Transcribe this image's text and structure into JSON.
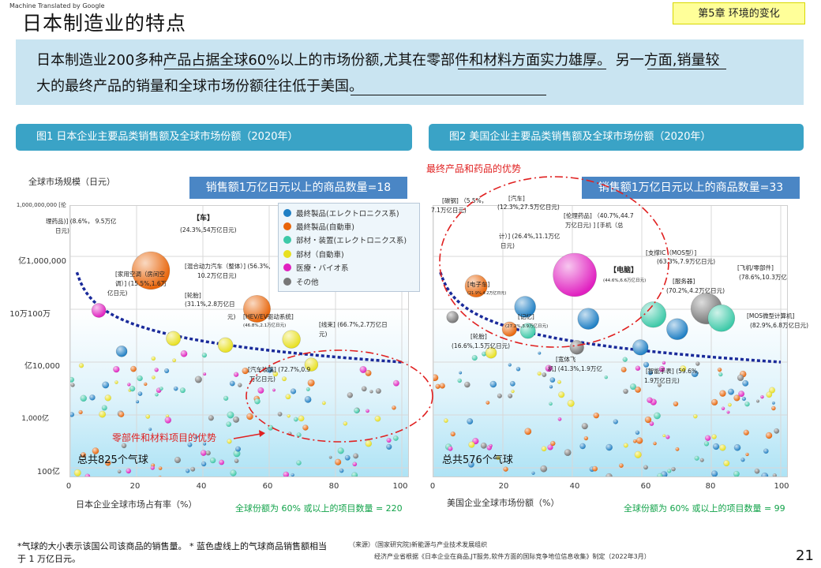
{
  "watermark": "Machine Translated by Google",
  "title": "日本制造业的特点",
  "chapter": "第5章 环境的变化",
  "summary": {
    "line1": "日本制造业200多种产品占据全球60%以上的市场份额,尤其在零部件和材料方面实力雄厚。 另一方面,销量较",
    "line2": "大的最终产品的销量和全球市场份额往往低于美国。"
  },
  "fig1": {
    "header": "图1 日本企业主要品类销售额及全球市场份额（2020年）",
    "count_box": "销售额1万亿日元以上的商品数量=18",
    "ylabel": "全球市场规模（日元）",
    "xlabel": "日本企业全球市场占有率（%）",
    "yticks": [
      "1,000,000,000 [伦",
      "亿1,000,000",
      "10万100万",
      "亿10,000",
      "1,000亿",
      "100亿"
    ],
    "xticks": [
      "0",
      "20",
      "40",
      "60",
      "80",
      "100"
    ],
    "total": "总共825个气球",
    "green_note": "全球份额为 60% 或以上的项目数量 = 220",
    "red_note": "零部件和材料项目的优势",
    "labels": [
      "理药品)] (8.6%， 9.5万亿",
      "日元)",
      "【车】",
      "(24.3%,54万亿日元)",
      "[家用空调（房间空",
      "调）] (15.5%,1.6万",
      "亿日元)",
      "[混合动力汽车（整体）] (56.3%,",
      "10.2万亿日元)",
      "[轮胎]",
      "(31.1%,2.8万亿日",
      "元)",
      "[HEV/EV驱动系统]",
      "(46.8%,2.1万亿日元)",
      "[线束] (66.7%,2.7万亿日",
      "元)",
      "[汽车玻璃] (72.7%,0.9",
      "万亿日元)"
    ]
  },
  "fig2": {
    "header": "图2 美国企业主要品类销售额及全球市场份额（2020年）",
    "count_box": "销售额1万亿日元以上的商品数量=33",
    "xlabel": "美国企业全球市场份额（%）",
    "xticks": [
      "0",
      "20",
      "40",
      "60",
      "80",
      "100"
    ],
    "total": "总共576个气球",
    "green_note": "全球份额为 60% 或以上的项目数量 = 99",
    "red_note": "最终产品和药品的优势",
    "labels": [
      "[碳钢] （5.5%，",
      "7.1万亿日元)",
      "[汽车]",
      "(12.3%,27.5万亿日元)",
      "[伦理药品] （40.7%,44.7",
      "万亿日元) ] [手机（总",
      "计）] (26.4%,11.1万亿",
      "日元)",
      "[支撑IC（MOS型）]",
      "(63.3%,7.9万亿日元)",
      "【电脑】",
      "(44.6%,6.6万亿日元)",
      "[飞机/零部件]",
      "(78.6%,10.3万亿",
      "[服务器]",
      "(70.2%,4.2万亿日元)",
      "[电子车]",
      "(21.9%,4.2万亿日元)",
      "[记忆]",
      "(27.2%,3.9万亿日元)",
      "[MOS微型计算机]",
      "(82.9%,6.8万亿日元)",
      "[轮胎]",
      "(16.6%,1.5万亿日元)",
      "[宽体飞",
      "机] (41.3%,1.9万亿",
      "[智能手表] (59.6%,",
      "1.9万亿日元)"
    ]
  },
  "legend": [
    {
      "label": "最終製品(エレクトロニクス系)",
      "color": "#1f7fc4"
    },
    {
      "label": "最終製品(自動車)",
      "color": "#e8650a"
    },
    {
      "label": "部材・装置(エレクトロニクス系)",
      "color": "#3dc9a8"
    },
    {
      "label": "部材（自動車)",
      "color": "#e8e020"
    },
    {
      "label": "医療・バイオ系",
      "color": "#e020c0"
    },
    {
      "label": "その他",
      "color": "#777777"
    }
  ],
  "colors": {
    "summary_bg": "#c9e4f1",
    "header_bg": "#3aa3c6",
    "count_box_bg": "#4a86c5",
    "chapter_bg": "#ffff99",
    "green_text": "#12a34a",
    "red_text": "#e02020",
    "dashed_curve": "#1a2a9a"
  },
  "notes": {
    "bubble_note": "*气球的大小表示该国公司该商品的销售量。 * 蓝色虚线上的气球商品销售额相当于 1 万亿日元。",
    "source1": "（来源）（国家研究院)新能源与产业技术发展组织",
    "source2": "经济产业省根据《日本企业在商品,JT服务,软件方面的国际竞争地位信息收集》制定（2022年3月）"
  },
  "page_number": "21",
  "chart_data": [
    {
      "type": "scatter",
      "xlim": [
        0,
        100
      ],
      "grid": true,
      "bubble_size": "sales",
      "legend_position": "top-right",
      "points": [
        {
          "x": 8.6,
          "y_trillion_yen": 9.5,
          "category": "医療・バイオ系"
        },
        {
          "x": 24.3,
          "y_trillion_yen": 54,
          "category": "最終製品(自動車)"
        },
        {
          "x": 15.5,
          "y_trillion_yen": 1.6,
          "category": "最終製品(エレクトロニクス系)"
        },
        {
          "x": 56.3,
          "y_trillion_yen": 10.2,
          "category": "最終製品(自動車)"
        },
        {
          "x": 31.1,
          "y_trillion_yen": 2.8,
          "category": "部材（自動車)"
        },
        {
          "x": 46.8,
          "y_trillion_yen": 2.1,
          "category": "部材（自動車)"
        },
        {
          "x": 66.7,
          "y_trillion_yen": 2.7,
          "category": "部材（自動車)"
        },
        {
          "x": 72.7,
          "y_trillion_yen": 0.9,
          "category": "部材（自動車)"
        }
      ]
    },
    {
      "type": "scatter",
      "xlim": [
        0,
        100
      ],
      "grid": true,
      "bubble_size": "sales",
      "points": [
        {
          "x": 5.5,
          "y_trillion_yen": 7.1,
          "category": "その他"
        },
        {
          "x": 12.3,
          "y_trillion_yen": 27.5,
          "category": "最終製品(自動車)"
        },
        {
          "x": 40.7,
          "y_trillion_yen": 44.7,
          "category": "医療・バイオ系"
        },
        {
          "x": 26.4,
          "y_trillion_yen": 11.1,
          "category": "最終製品(エレクトロニクス系)"
        },
        {
          "x": 63.3,
          "y_trillion_yen": 7.9,
          "category": "部材・装置(エレクトロニクス系)"
        },
        {
          "x": 44.6,
          "y_trillion_yen": 6.6,
          "category": "最終製品(エレクトロニクス系)"
        },
        {
          "x": 78.6,
          "y_trillion_yen": 10.3,
          "category": "その他"
        },
        {
          "x": 70.2,
          "y_trillion_yen": 4.2,
          "category": "最終製品(エレクトロニクス系)"
        },
        {
          "x": 21.9,
          "y_trillion_yen": 4.2,
          "category": "最終製品(自動車)"
        },
        {
          "x": 27.2,
          "y_trillion_yen": 3.9,
          "category": "部材・装置(エレクトロニクス系)"
        },
        {
          "x": 82.9,
          "y_trillion_yen": 6.8,
          "category": "部材・装置(エレクトロニクス系)"
        },
        {
          "x": 16.6,
          "y_trillion_yen": 1.5,
          "category": "部材（自動車)"
        },
        {
          "x": 41.3,
          "y_trillion_yen": 1.9,
          "category": "その他"
        },
        {
          "x": 59.6,
          "y_trillion_yen": 1.9,
          "category": "最終製品(エレクトロニクス系)"
        }
      ]
    }
  ]
}
